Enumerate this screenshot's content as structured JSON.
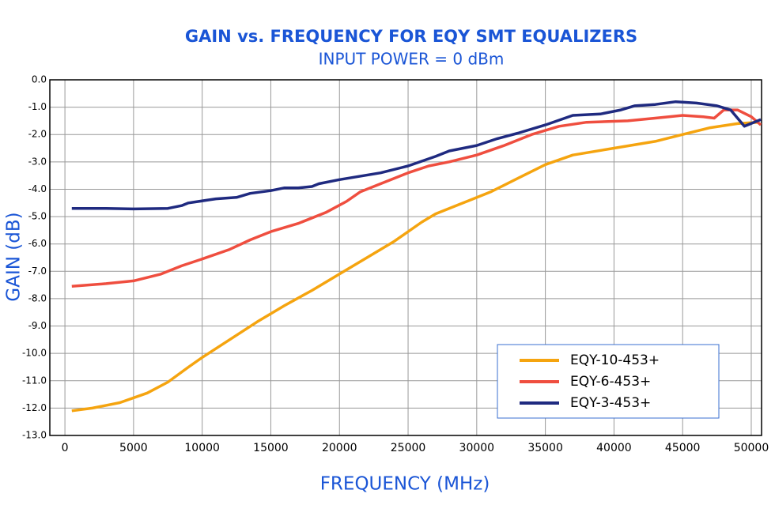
{
  "chart_data": {
    "type": "line",
    "title": "GAIN vs. FREQUENCY FOR EQY SMT EQUALIZERS",
    "subtitle": "INPUT POWER = 0 dBm",
    "x_label": "FREQUENCY (MHz)",
    "y_label": "GAIN (dB)",
    "xlim": [
      -1100,
      50750
    ],
    "ylim": [
      -13,
      0
    ],
    "xticks": [
      0,
      5000,
      10000,
      15000,
      20000,
      25000,
      30000,
      35000,
      40000,
      45000,
      50000
    ],
    "yticks": [
      {
        "value": 0,
        "label": "0.0"
      },
      {
        "value": -1,
        "label": "-1.0"
      },
      {
        "value": -2,
        "label": "-2.0"
      },
      {
        "value": -3,
        "label": "-3.0"
      },
      {
        "value": -4,
        "label": "-4.0"
      },
      {
        "value": -5,
        "label": "-5.0"
      },
      {
        "value": -6,
        "label": "-6.0"
      },
      {
        "value": -7,
        "label": "-7.0"
      },
      {
        "value": -8,
        "label": "-8.0"
      },
      {
        "value": -9,
        "label": "-9.0"
      },
      {
        "value": -10,
        "label": "-10.0"
      },
      {
        "value": -11,
        "label": "-11.0"
      },
      {
        "value": -12,
        "label": "-12.0"
      },
      {
        "value": -13,
        "label": "-13.0"
      }
    ],
    "grid": true,
    "legend": "lower-right",
    "series": [
      {
        "name": "EQY-10-453+",
        "color": "#f5a40f",
        "x": [
          500,
          2000,
          4000,
          6000,
          7500,
          9000,
          10000,
          12000,
          14000,
          16000,
          18000,
          20000,
          22000,
          24000,
          26000,
          27000,
          29000,
          31000,
          33000,
          35000,
          37000,
          40000,
          43000,
          45000,
          47000,
          49000,
          50500
        ],
        "values": [
          -12.1,
          -12.0,
          -11.8,
          -11.45,
          -11.05,
          -10.5,
          -10.15,
          -9.5,
          -8.85,
          -8.25,
          -7.7,
          -7.1,
          -6.5,
          -5.9,
          -5.2,
          -4.9,
          -4.5,
          -4.1,
          -3.6,
          -3.1,
          -2.75,
          -2.5,
          -2.25,
          -2.0,
          -1.75,
          -1.6,
          -1.55
        ]
      },
      {
        "name": "EQY-6-453+",
        "color": "#ef4e3f",
        "x": [
          500,
          3000,
          5000,
          7000,
          8500,
          10000,
          12000,
          13500,
          15000,
          17000,
          19000,
          20500,
          21500,
          23000,
          25000,
          26500,
          28000,
          30000,
          32000,
          34000,
          36000,
          38000,
          41000,
          43000,
          45000,
          46500,
          47300,
          48000,
          49000,
          50000,
          50700
        ],
        "values": [
          -7.55,
          -7.45,
          -7.35,
          -7.1,
          -6.8,
          -6.55,
          -6.2,
          -5.85,
          -5.55,
          -5.25,
          -4.85,
          -4.45,
          -4.1,
          -3.8,
          -3.4,
          -3.15,
          -3.0,
          -2.75,
          -2.4,
          -2.0,
          -1.7,
          -1.55,
          -1.5,
          -1.4,
          -1.3,
          -1.35,
          -1.4,
          -1.1,
          -1.1,
          -1.35,
          -1.65
        ]
      },
      {
        "name": "EQY-3-453+",
        "color": "#1f2a80",
        "x": [
          500,
          3000,
          5000,
          7500,
          8500,
          9000,
          11000,
          12500,
          13500,
          15000,
          16000,
          17000,
          18000,
          18500,
          20000,
          23000,
          25000,
          27000,
          28000,
          30000,
          31500,
          33000,
          35000,
          37000,
          39000,
          40500,
          41500,
          43000,
          44500,
          46000,
          47500,
          48500,
          49500,
          50700
        ],
        "values": [
          -4.7,
          -4.7,
          -4.72,
          -4.7,
          -4.6,
          -4.5,
          -4.35,
          -4.3,
          -4.15,
          -4.05,
          -3.95,
          -3.95,
          -3.9,
          -3.8,
          -3.65,
          -3.4,
          -3.15,
          -2.8,
          -2.6,
          -2.4,
          -2.15,
          -1.95,
          -1.65,
          -1.3,
          -1.25,
          -1.1,
          -0.95,
          -0.9,
          -0.8,
          -0.85,
          -0.95,
          -1.1,
          -1.7,
          -1.45
        ]
      }
    ]
  }
}
